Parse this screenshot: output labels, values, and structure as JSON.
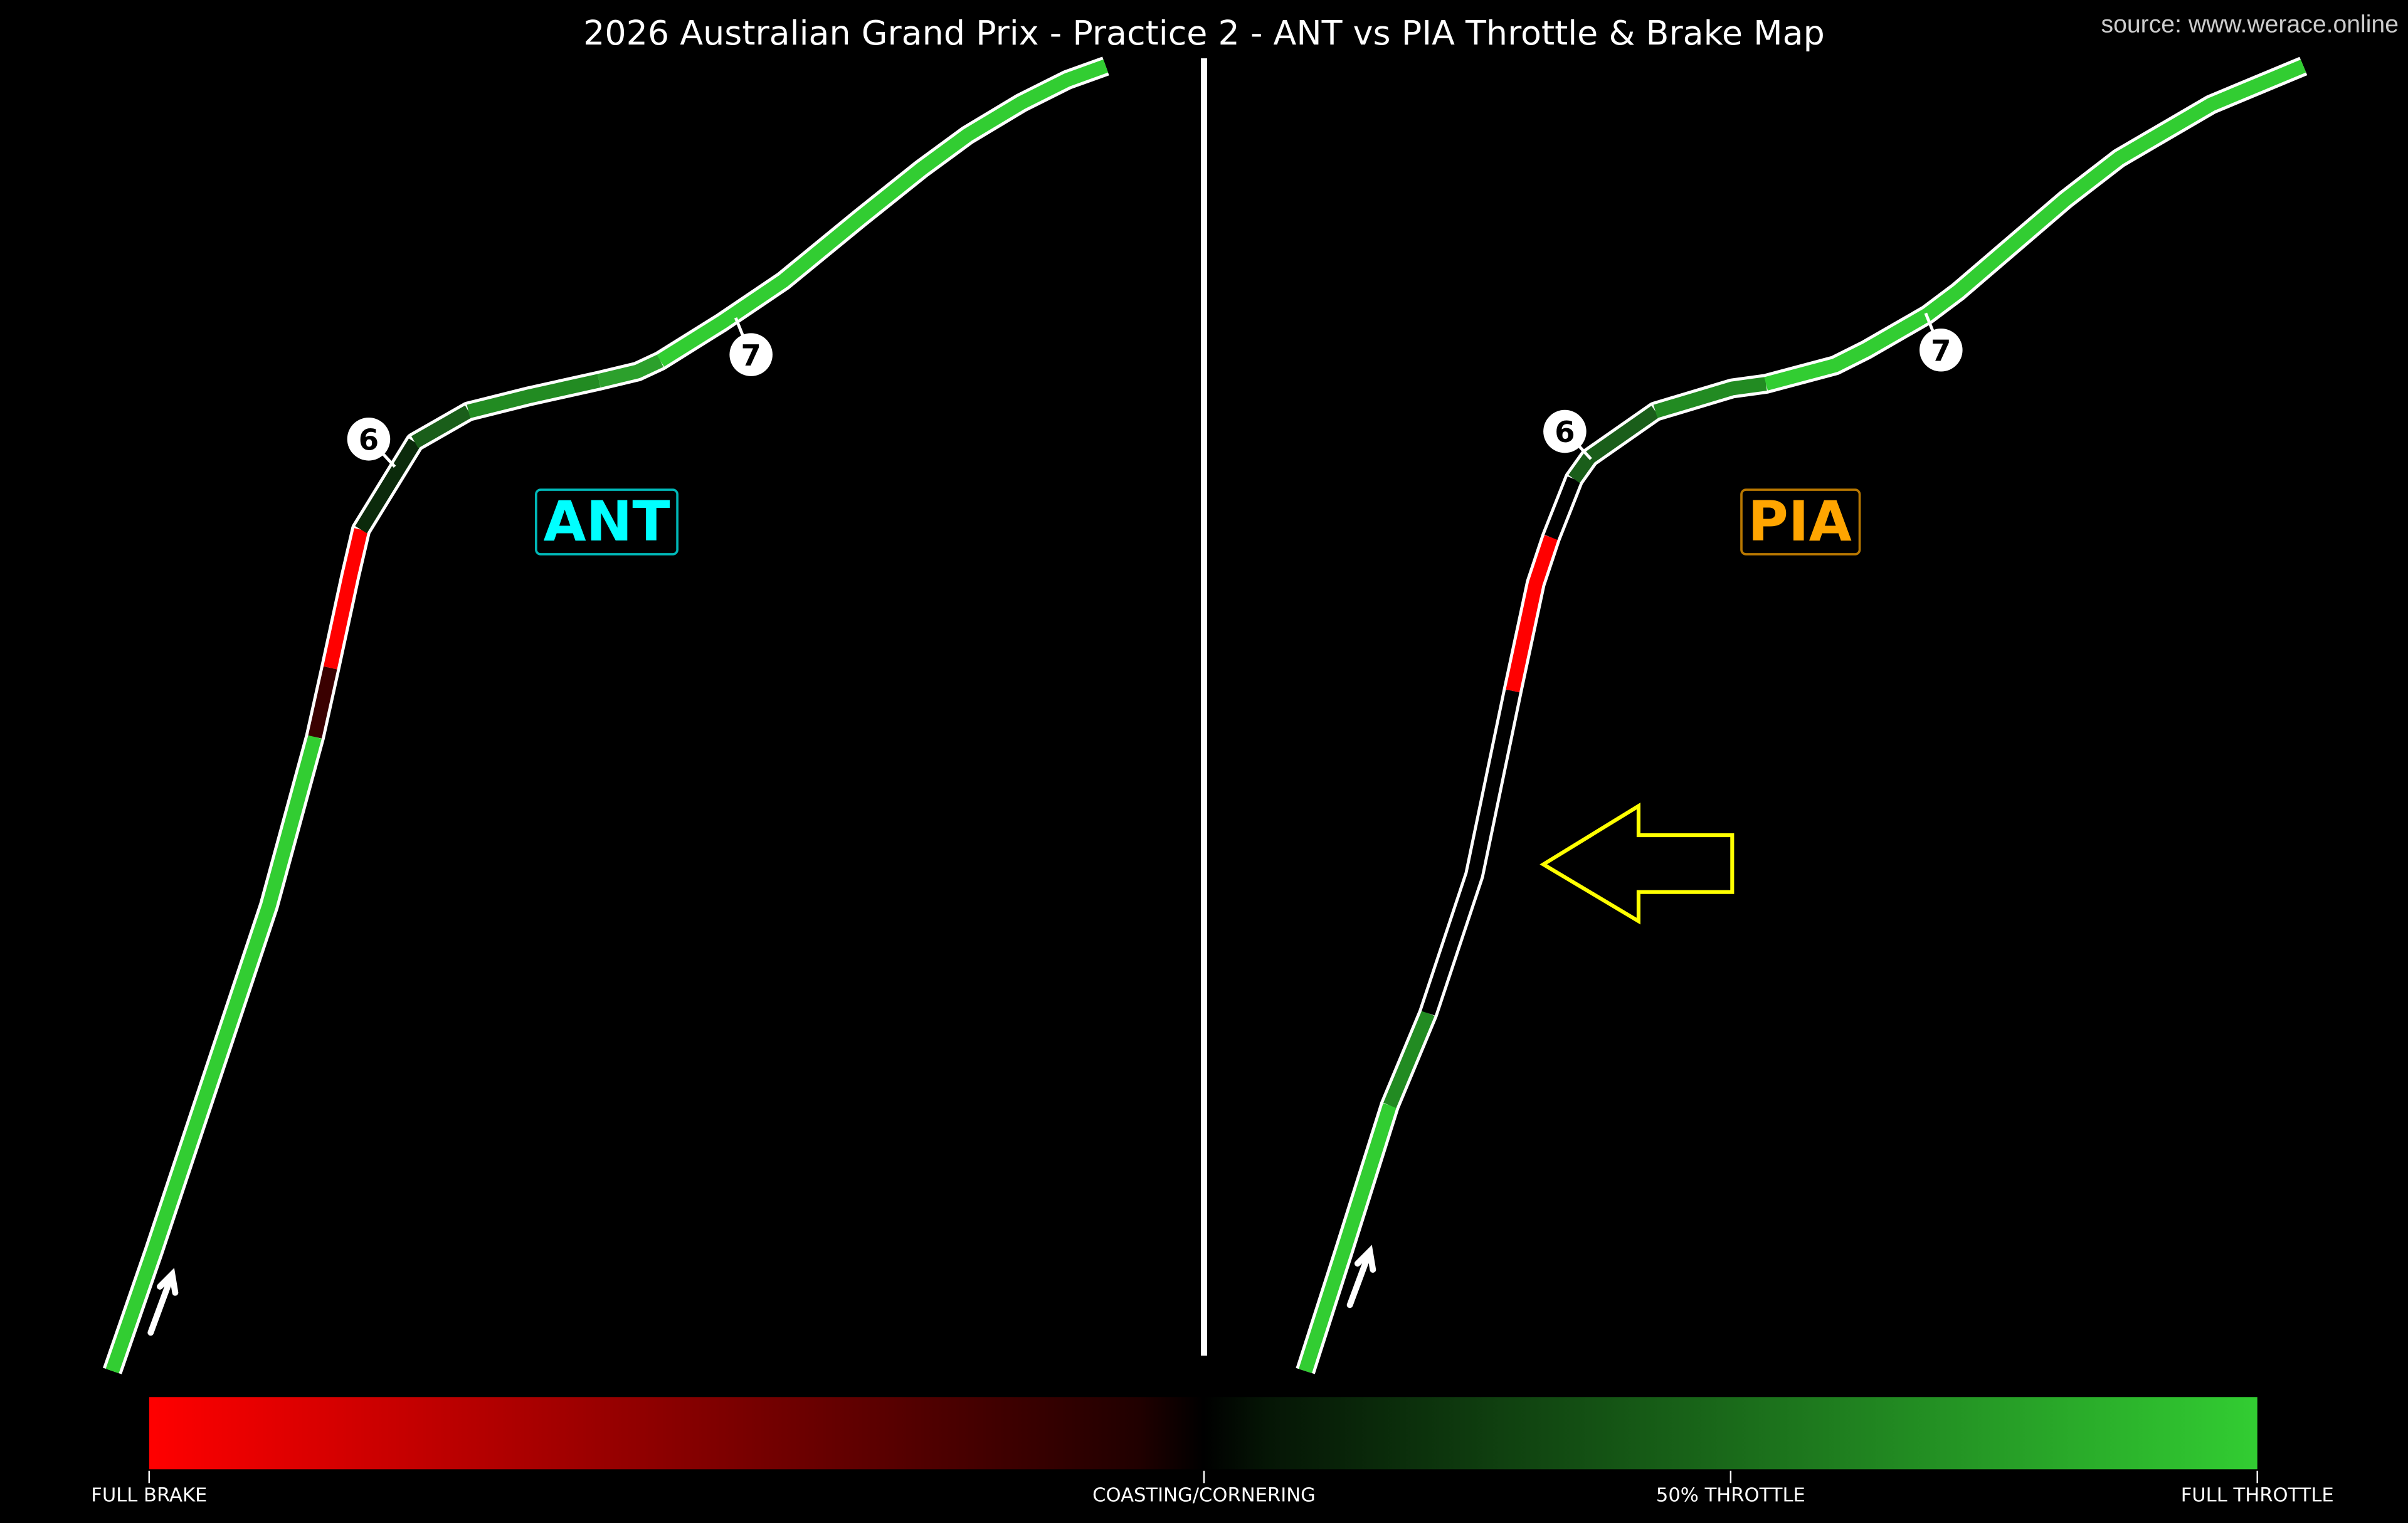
{
  "title": "2026 Australian Grand Prix - Practice 2 - ANT vs PIA Throttle & Brake Map",
  "source": "source: www.werace.online",
  "drivers": [
    {
      "code": "ANT",
      "color": "#00ffff",
      "turns": [
        "6",
        "7"
      ]
    },
    {
      "code": "PIA",
      "color": "#ffa500",
      "turns": [
        "6",
        "7"
      ]
    }
  ],
  "colorbar": {
    "labels": [
      "FULL BRAKE",
      "COASTING/CORNERING",
      "50% THROTTLE",
      "FULL THROTTLE"
    ],
    "colors": {
      "full_brake": "#ff0000",
      "coasting": "#000000",
      "full_throttle": "#32cd32"
    }
  },
  "highlight_arrow_color": "#ffff00"
}
